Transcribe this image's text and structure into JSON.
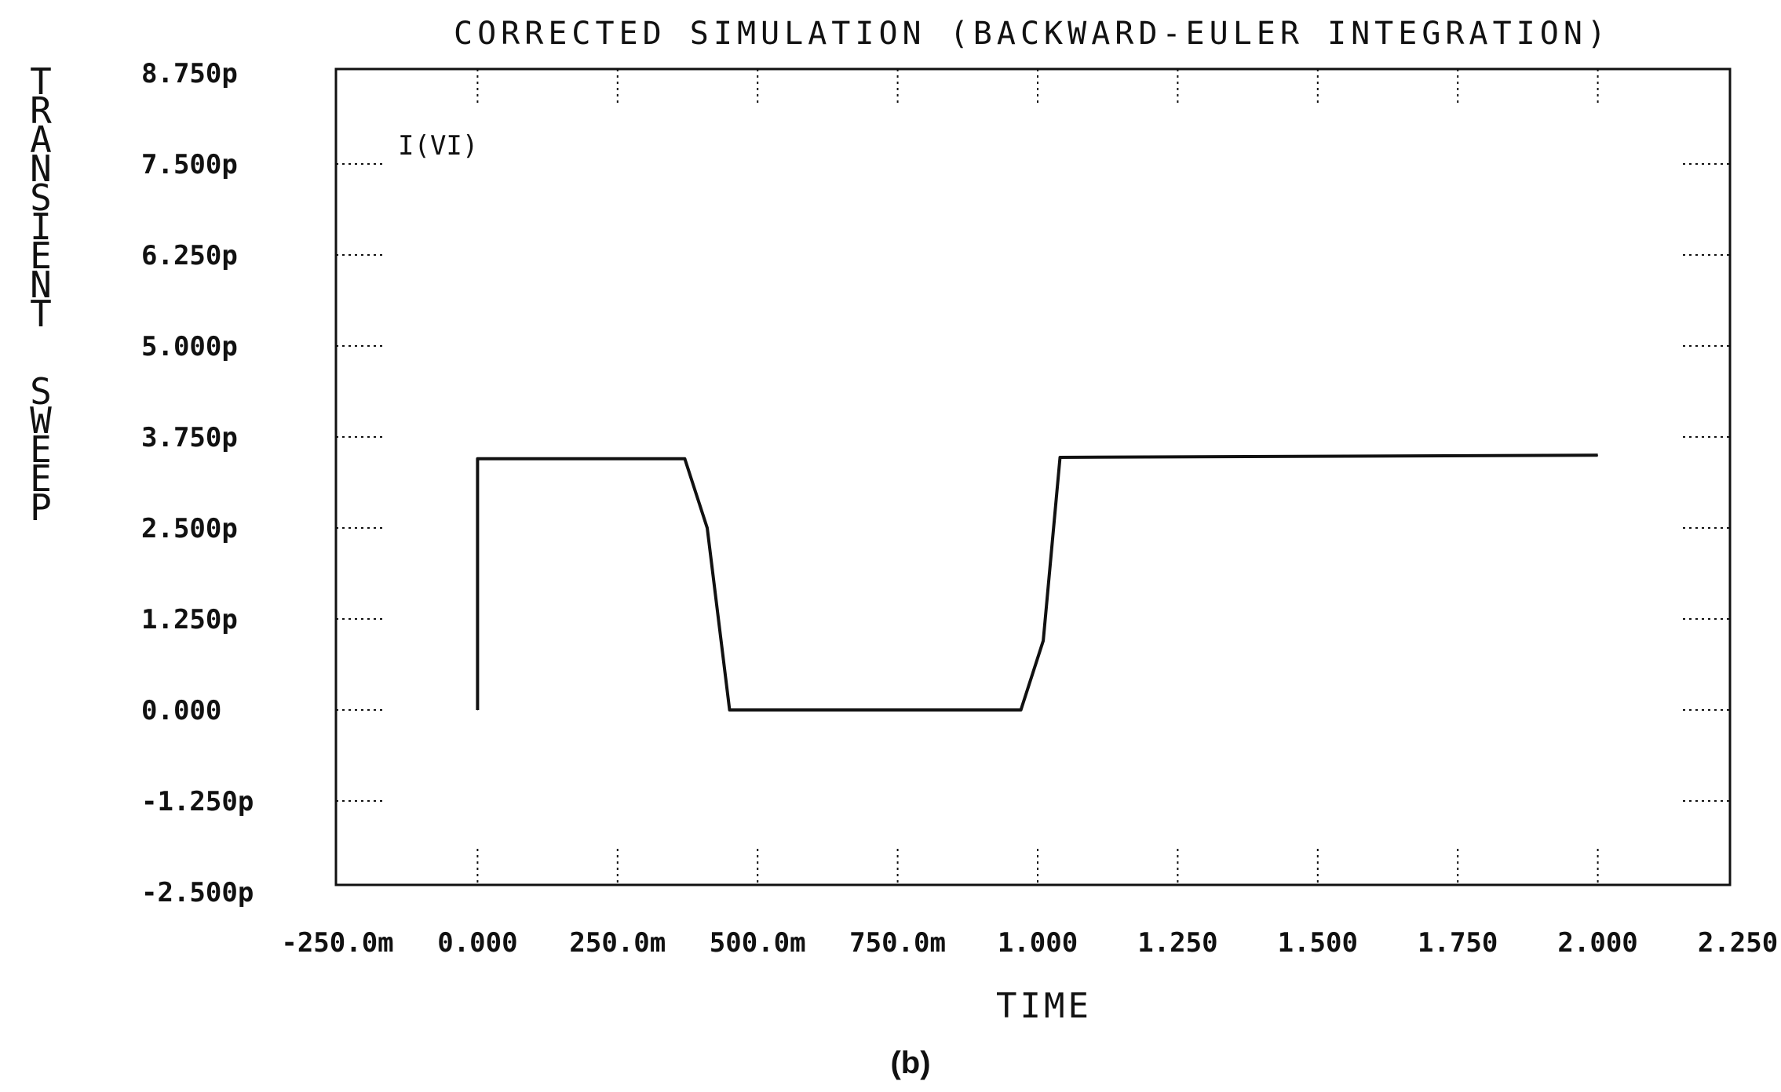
{
  "chart_data": {
    "type": "line",
    "title": "CORRECTED SIMULATION (BACKWARD-EULER INTEGRATION)",
    "xlabel": "TIME",
    "ylabel": "TRANSIENT SWEEP",
    "caption": "(b)",
    "xlim": [
      -0.25,
      2.25
    ],
    "ylim": [
      -2.5,
      8.75
    ],
    "x_ticks": [
      -0.25,
      0,
      0.25,
      0.5,
      0.75,
      1.0,
      1.25,
      1.5,
      1.75,
      2.0,
      2.25
    ],
    "x_tick_labels": [
      "-250.0m",
      "0.000",
      "250.0m",
      "500.0m",
      "750.0m",
      "1.000",
      "1.250",
      "1.500",
      "1.750",
      "2.000",
      "2.250"
    ],
    "y_ticks": [
      8.75,
      7.5,
      6.25,
      5.0,
      3.75,
      2.5,
      1.25,
      0,
      -1.25,
      -2.5
    ],
    "y_tick_labels": [
      "8.750p",
      "7.500p",
      "6.250p",
      "5.000p",
      "3.750p",
      "2.500p",
      "1.250p",
      "0.000",
      "-1.250p",
      "-2.500p"
    ],
    "series": [
      {
        "name": "I(VI)",
        "x": [
          0.0,
          0.0,
          0.37,
          0.41,
          0.45,
          0.97,
          1.01,
          1.04,
          2.0
        ],
        "y": [
          0.0,
          3.45,
          3.45,
          2.5,
          0.0,
          0.0,
          0.95,
          3.47,
          3.5
        ]
      }
    ],
    "grid": false,
    "colors": {
      "line": "#111111",
      "frame": "#111111",
      "background": "#ffffff"
    }
  }
}
